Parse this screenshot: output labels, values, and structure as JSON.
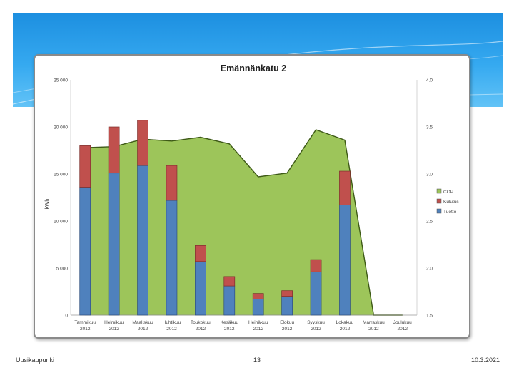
{
  "footer": {
    "left": "Uusikaupunki",
    "page_number": "13",
    "date": "10.3.2021"
  },
  "colors": {
    "cop": "#9dc55a",
    "kulutus": "#c0504d",
    "tuotto": "#4f81bd",
    "header_top": "#1d8fe0",
    "header_bottom": "#62c3f7"
  },
  "chart_data": {
    "type": "bar",
    "title": "Emännänkatu 2",
    "ylabel": "kWh",
    "ylim": [
      0,
      25000
    ],
    "y2lim": [
      1.5,
      4.0
    ],
    "yticks": [
      "0",
      "5 000",
      "10 000",
      "15 000",
      "20 000",
      "25 000"
    ],
    "y2ticks": [
      "1.5",
      "2.0",
      "2.5",
      "3.0",
      "3.5",
      "4.0"
    ],
    "categories": [
      [
        "Tammikuu",
        "2012"
      ],
      [
        "Helmikuu",
        "2012"
      ],
      [
        "Maaliskuu",
        "2012"
      ],
      [
        "Huhtikuu",
        "2012"
      ],
      [
        "Toukokuu",
        "2012"
      ],
      [
        "Kesäkuu",
        "2012"
      ],
      [
        "Heinäkuu",
        "2012"
      ],
      [
        "Elokuu",
        "2012"
      ],
      [
        "Syyskuu",
        "2012"
      ],
      [
        "Lokakuu",
        "2012"
      ],
      [
        "Marraskuu",
        "2012"
      ],
      [
        "Joulukuu",
        "2012"
      ]
    ],
    "legend": [
      "COP",
      "Kulutus",
      "Tuotto"
    ],
    "legend_position": "right",
    "series": [
      {
        "name": "Tuotto",
        "kind": "bar-stack",
        "values": [
          13600,
          15100,
          15900,
          12200,
          5700,
          3100,
          1700,
          2000,
          4600,
          11700,
          0,
          0
        ]
      },
      {
        "name": "Kulutus",
        "kind": "bar-stack",
        "values": [
          4400,
          4900,
          4800,
          3700,
          1700,
          1000,
          600,
          600,
          1300,
          3600,
          0,
          0
        ]
      },
      {
        "name": "COP",
        "kind": "area",
        "axis": "secondary",
        "values": [
          3.28,
          3.29,
          3.37,
          3.35,
          3.39,
          3.32,
          2.97,
          3.01,
          3.47,
          3.36,
          1.5,
          1.5
        ]
      }
    ]
  }
}
